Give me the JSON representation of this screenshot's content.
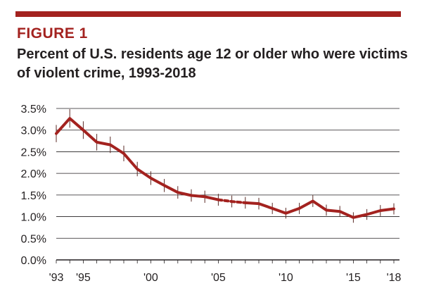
{
  "figure": {
    "label": "FIGURE 1",
    "title": "Percent of U.S. residents age 12 or older who were victims of violent crime, 1993-2018"
  },
  "colors": {
    "accent": "#a3221f",
    "line": "#a3221f",
    "text": "#231f20",
    "grid": "#231f20"
  },
  "chart_data": {
    "type": "line",
    "title": "Percent of U.S. residents age 12 or older who were victims of violent crime, 1993-2018",
    "xlabel": "",
    "ylabel": "",
    "ylim": [
      0,
      3.5
    ],
    "yticks": [
      0,
      0.5,
      1.0,
      1.5,
      2.0,
      2.5,
      3.0,
      3.5
    ],
    "ytick_labels": [
      "0.0%",
      "0.5%",
      "1.0%",
      "1.5%",
      "2.0%",
      "2.5%",
      "3.0%",
      "3.5%"
    ],
    "xlim": [
      1993,
      2018
    ],
    "xticks": [
      1993,
      1995,
      2000,
      2005,
      2010,
      2015,
      2018
    ],
    "xtick_labels": [
      "'93",
      "'95",
      "'00",
      "'05",
      "'10",
      "'15",
      "'18"
    ],
    "grid": "horizontal",
    "legend": "none",
    "break_segment": [
      2005,
      2007
    ],
    "error_bars": true,
    "x": [
      1993,
      1994,
      1995,
      1996,
      1997,
      1998,
      1999,
      2000,
      2001,
      2002,
      2003,
      2004,
      2005,
      2006,
      2007,
      2008,
      2009,
      2010,
      2011,
      2012,
      2013,
      2014,
      2015,
      2016,
      2017,
      2018
    ],
    "series": [
      {
        "values": [
          2.92,
          3.27,
          3.0,
          2.72,
          2.66,
          2.46,
          2.1,
          1.89,
          1.72,
          1.56,
          1.49,
          1.46,
          1.39,
          1.35,
          1.32,
          1.3,
          1.19,
          1.08,
          1.19,
          1.36,
          1.15,
          1.12,
          0.98,
          1.05,
          1.14,
          1.18
        ]
      }
    ]
  }
}
